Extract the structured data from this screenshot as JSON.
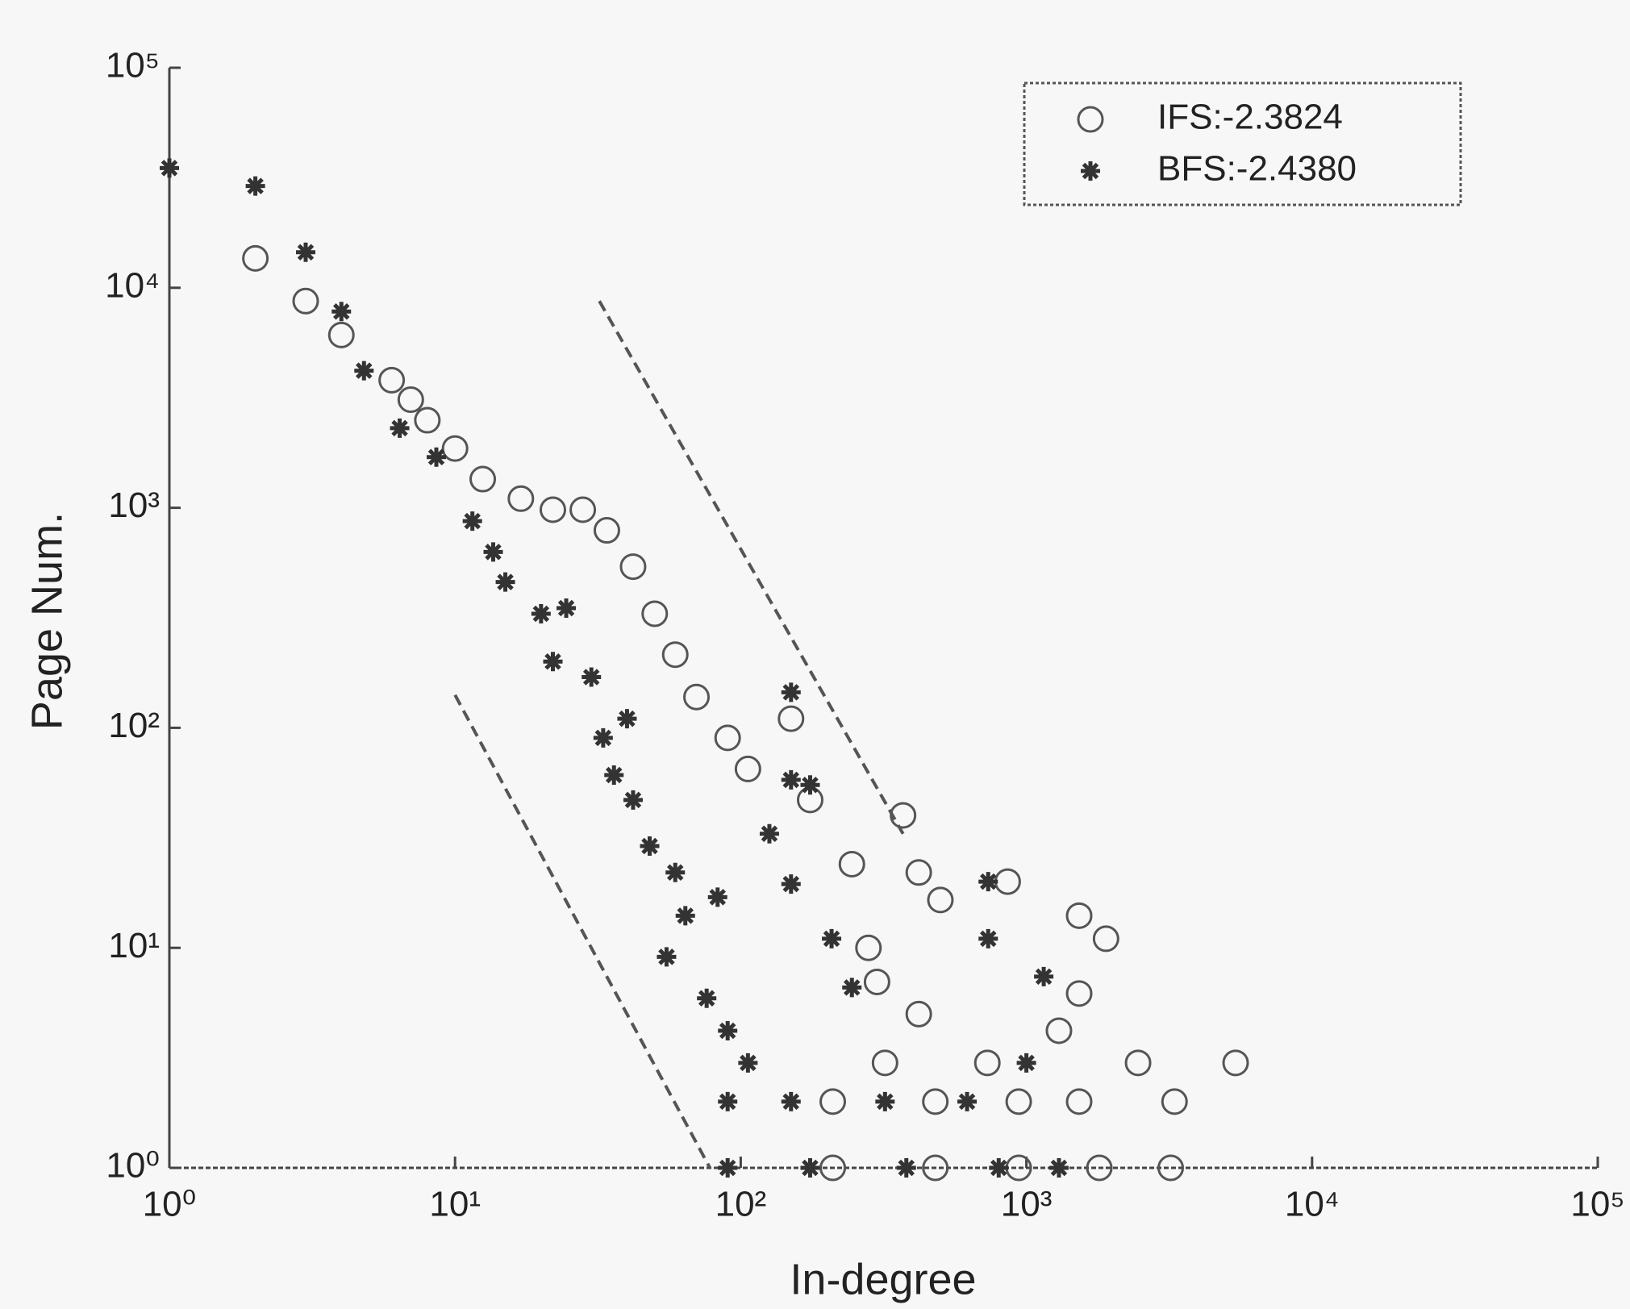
{
  "chart_data": {
    "type": "scatter",
    "xlabel": "In-degree",
    "ylabel": "Page Num.",
    "xscale": "log",
    "yscale": "log",
    "xlim": [
      1,
      100000
    ],
    "ylim": [
      1,
      100000
    ],
    "xticks": [
      {
        "value": 1,
        "label": "10⁰"
      },
      {
        "value": 10,
        "label": "10¹"
      },
      {
        "value": 100,
        "label": "10²"
      },
      {
        "value": 1000,
        "label": "10³"
      },
      {
        "value": 10000,
        "label": "10⁴"
      },
      {
        "value": 100000,
        "label": "10⁵"
      }
    ],
    "yticks": [
      {
        "value": 1,
        "label": "10⁰"
      },
      {
        "value": 10,
        "label": "10¹"
      },
      {
        "value": 100,
        "label": "10²"
      },
      {
        "value": 1000,
        "label": "10³"
      },
      {
        "value": 10000,
        "label": "10⁴"
      },
      {
        "value": 100000,
        "label": "10⁵"
      }
    ],
    "legend": "upper right",
    "series": [
      {
        "name": "IFS:-2.3824",
        "marker": "circle",
        "color": "#555555",
        "x": [
          2,
          3,
          4,
          6,
          7,
          8,
          10,
          12.5,
          17,
          22,
          28,
          34,
          42,
          50,
          59,
          70,
          90,
          106,
          150,
          175,
          245,
          370,
          420,
          500,
          860,
          1530,
          1900,
          1530,
          1300,
          2460,
          5400,
          3300,
          1530,
          3200,
          1800,
          210,
          480,
          940,
          320,
          730,
          210,
          480,
          940,
          300,
          420,
          280
        ],
        "y": [
          13600,
          8700,
          6100,
          3800,
          3100,
          2500,
          1860,
          1350,
          1100,
          980,
          980,
          790,
          540,
          330,
          215,
          138,
          90,
          65,
          110,
          47,
          24,
          40,
          22,
          16.5,
          20,
          14,
          11,
          6.2,
          4.2,
          3,
          3,
          2,
          2,
          1,
          1,
          2,
          2,
          2,
          3,
          3,
          1,
          1,
          1,
          7,
          5,
          10
        ]
      },
      {
        "name": "BFS:-2.4380",
        "marker": "star",
        "color": "#333333",
        "x": [
          1,
          2,
          3,
          4,
          4.8,
          6.4,
          8.6,
          11.5,
          13.6,
          15,
          20,
          24.5,
          22,
          30,
          33,
          40,
          36,
          42,
          48,
          59,
          64,
          83,
          55,
          76,
          90,
          106,
          150,
          175,
          126,
          150,
          208,
          245,
          150,
          735,
          735,
          1150,
          1000,
          90,
          150,
          320,
          620,
          90,
          175,
          380,
          800,
          1300
        ],
        "y": [
          35000,
          29000,
          14500,
          7800,
          4200,
          2300,
          1700,
          870,
          630,
          460,
          330,
          350,
          200,
          170,
          90,
          110,
          61,
          47,
          29,
          22,
          14,
          17,
          9.1,
          5.9,
          4.2,
          3,
          58,
          55,
          33,
          19.5,
          11,
          6.6,
          145,
          20,
          11,
          7.4,
          3,
          2,
          2,
          2,
          2,
          1,
          1,
          1,
          1,
          1
        ]
      }
    ],
    "reference_lines": [
      {
        "x": [
          32,
          370
        ],
        "y": [
          8700,
          33
        ]
      },
      {
        "x": [
          10,
          78
        ],
        "y": [
          141,
          1
        ]
      }
    ]
  }
}
